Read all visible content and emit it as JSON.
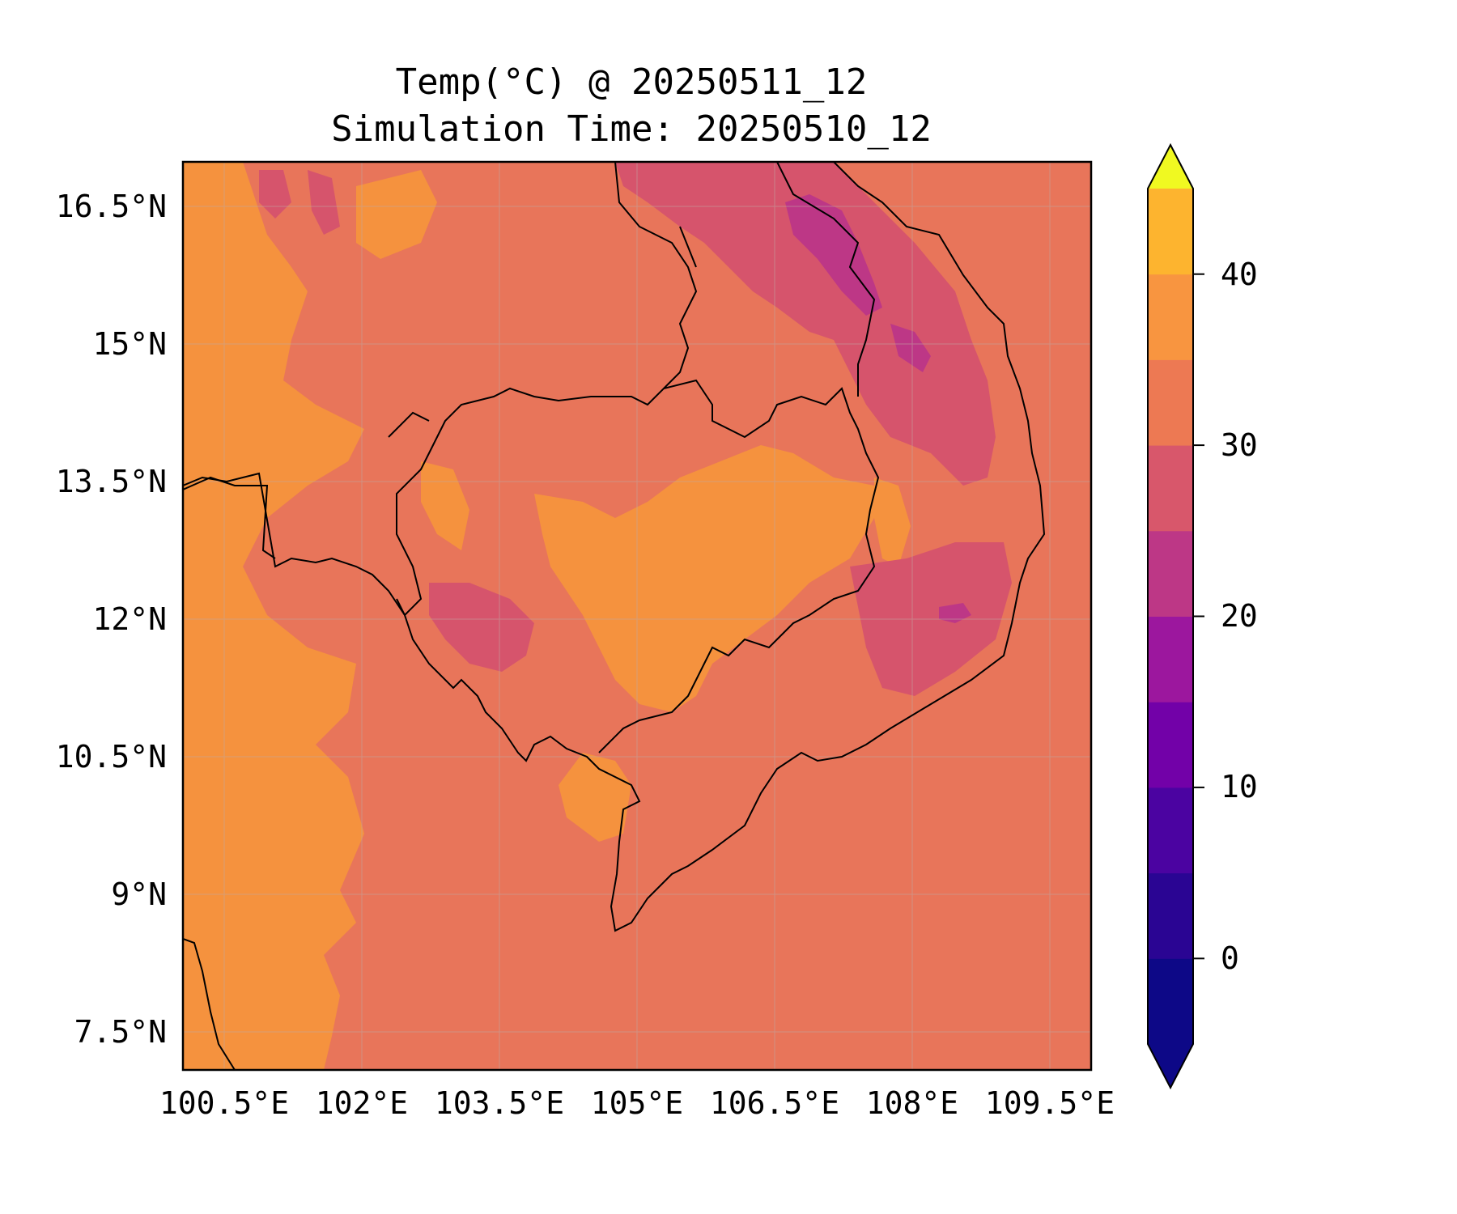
{
  "title_line1": "Temp(°C) @ 20250511_12",
  "title_line2": "Simulation Time: 20250510_12",
  "map": {
    "lon_ticks": [
      "100.5°E",
      "102°E",
      "103.5°E",
      "105°E",
      "106.5°E",
      "108°E",
      "109.5°E"
    ],
    "lat_ticks": [
      "16.5°N",
      "15°N",
      "13.5°N",
      "12°N",
      "10.5°N",
      "9°N",
      "7.5°N"
    ],
    "lon_range": [
      100.5,
      110.4
    ],
    "lat_range": [
      7.1,
      17.0
    ],
    "background_color": "#e8755a",
    "gridlines": true
  },
  "colorbar": {
    "ticks": [
      "0",
      "10",
      "20",
      "30",
      "40"
    ],
    "levels": [
      -5,
      0,
      5,
      10,
      15,
      20,
      25,
      30,
      35,
      40,
      45
    ],
    "colors": [
      "#0d0887",
      "#2a0593",
      "#4b03a1",
      "#7201a8",
      "#9c179e",
      "#bd3786",
      "#d8576b",
      "#ed7953",
      "#f89540",
      "#fdb42f",
      "#f0f921"
    ],
    "extend": "both",
    "cmap": "plasma"
  }
}
